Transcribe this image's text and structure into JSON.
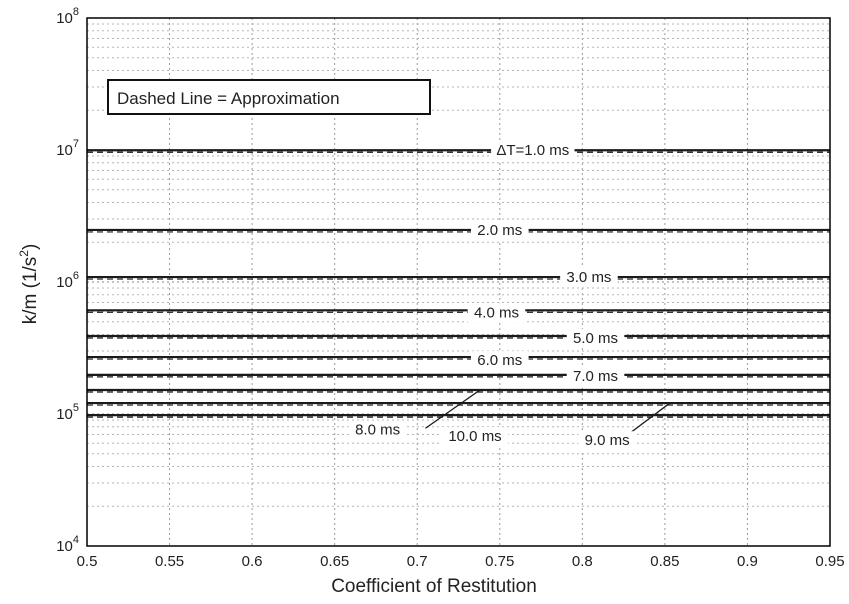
{
  "chart_data": {
    "type": "line",
    "title": "",
    "xlabel": "Coefficient of Restitution",
    "ylabel": "k/m (1/s²)",
    "ylabel_parts": [
      "k/m (1/s",
      "2",
      ")"
    ],
    "xlim": [
      0.5,
      0.95
    ],
    "ylim": [
      10000,
      100000000
    ],
    "yscale": "log",
    "grid": true,
    "x_ticks": [
      "0.5",
      "0.55",
      "0.6",
      "0.65",
      "0.7",
      "0.75",
      "0.8",
      "0.85",
      "0.9",
      "0.95"
    ],
    "y_ticks": [
      {
        "value": 10000,
        "base": "10",
        "exp": "4"
      },
      {
        "value": 100000,
        "base": "10",
        "exp": "5"
      },
      {
        "value": 1000000,
        "base": "10",
        "exp": "6"
      },
      {
        "value": 10000000,
        "base": "10",
        "exp": "7"
      },
      {
        "value": 100000000,
        "base": "10",
        "exp": "8"
      }
    ],
    "legend_text": "Dashed Line = Approximation",
    "legend_position": "top-left",
    "x": [
      0.5,
      0.95
    ],
    "series": [
      {
        "label": "ΔT=1.0 ms",
        "values": [
          9960000,
          9960000
        ]
      },
      {
        "label": "2.0 ms",
        "values": [
          2480000,
          2480000
        ]
      },
      {
        "label": "3.0 ms",
        "values": [
          1090000,
          1090000
        ]
      },
      {
        "label": "4.0 ms",
        "values": [
          610000,
          610000
        ]
      },
      {
        "label": "5.0 ms",
        "values": [
          390000,
          390000
        ]
      },
      {
        "label": "6.0 ms",
        "values": [
          270000,
          270000
        ]
      },
      {
        "label": "7.0 ms",
        "values": [
          198000,
          198000
        ]
      },
      {
        "label": "8.0 ms",
        "values": [
          152000,
          152000
        ]
      },
      {
        "label": "9.0 ms",
        "values": [
          121000,
          121000
        ]
      },
      {
        "label": "10.0 ms",
        "values": [
          98000,
          98000
        ]
      }
    ]
  }
}
